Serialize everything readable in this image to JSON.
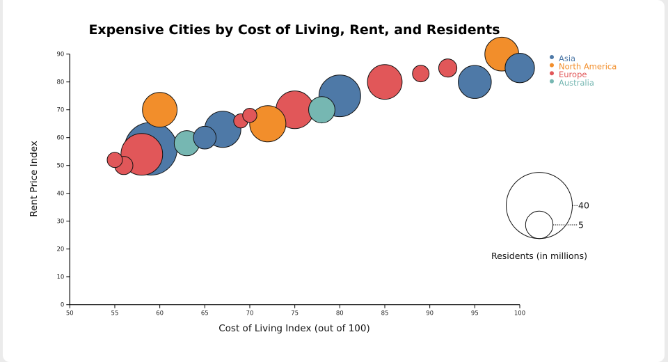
{
  "chart_data": {
    "type": "scatter",
    "title": "Expensive Cities by Cost of Living, Rent, and Residents",
    "xlabel": "Cost of Living Index (out of 100)",
    "ylabel": "Rent Price Index",
    "xlim": [
      50,
      100
    ],
    "ylim": [
      0,
      90
    ],
    "x_ticks": [
      50,
      55,
      60,
      65,
      70,
      75,
      80,
      85,
      90,
      95,
      100
    ],
    "y_ticks": [
      0,
      10,
      20,
      30,
      40,
      50,
      60,
      70,
      80,
      90
    ],
    "grid": false,
    "legend_position": "top-right",
    "legend": [
      {
        "name": "Asia",
        "color": "#4e79a7"
      },
      {
        "name": "North America",
        "color": "#f28e2b"
      },
      {
        "name": "Europe",
        "color": "#e15759"
      },
      {
        "name": "Australia",
        "color": "#76b7b2"
      }
    ],
    "size_legend": {
      "title": "Residents (in millions)",
      "values": [
        40,
        5
      ]
    },
    "points": [
      {
        "region": "Asia",
        "x": 59,
        "y": 56,
        "residents": 24
      },
      {
        "region": "North America",
        "x": 60,
        "y": 70,
        "residents": 9
      },
      {
        "region": "Europe",
        "x": 58,
        "y": 54,
        "residents": 14
      },
      {
        "region": "Europe",
        "x": 56,
        "y": 50,
        "residents": 1.6
      },
      {
        "region": "Europe",
        "x": 55,
        "y": 52,
        "residents": 0.9
      },
      {
        "region": "Australia",
        "x": 63,
        "y": 58,
        "residents": 4
      },
      {
        "region": "Asia",
        "x": 65,
        "y": 60,
        "residents": 3
      },
      {
        "region": "Asia",
        "x": 67,
        "y": 63,
        "residents": 10
      },
      {
        "region": "Europe",
        "x": 69,
        "y": 66,
        "residents": 0.7
      },
      {
        "region": "Europe",
        "x": 70,
        "y": 68,
        "residents": 0.7
      },
      {
        "region": "North America",
        "x": 72,
        "y": 65,
        "residents": 10
      },
      {
        "region": "Europe",
        "x": 75,
        "y": 70,
        "residents": 11
      },
      {
        "region": "Asia",
        "x": 80,
        "y": 75,
        "residents": 14
      },
      {
        "region": "Australia",
        "x": 78,
        "y": 70,
        "residents": 4.5
      },
      {
        "region": "Europe",
        "x": 85,
        "y": 80,
        "residents": 9
      },
      {
        "region": "Europe",
        "x": 89,
        "y": 83,
        "residents": 1.2
      },
      {
        "region": "Europe",
        "x": 92,
        "y": 85,
        "residents": 1.6
      },
      {
        "region": "Asia",
        "x": 95,
        "y": 80,
        "residents": 8
      },
      {
        "region": "Asia",
        "x": 100,
        "y": 85,
        "residents": 6
      },
      {
        "region": "North America",
        "x": 98,
        "y": 90,
        "residents": 8.5
      }
    ]
  }
}
